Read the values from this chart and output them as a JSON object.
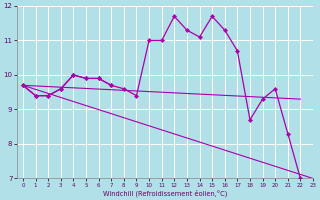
{
  "xlabel": "Windchill (Refroidissement éolien,°C)",
  "background_color": "#b2e0e8",
  "grid_color": "#ffffff",
  "line_color": "#aa00aa",
  "x_values": [
    0,
    1,
    2,
    3,
    4,
    5,
    6,
    7,
    8,
    9,
    10,
    11,
    12,
    13,
    14,
    15,
    16,
    17,
    18,
    19,
    20,
    21,
    22,
    23
  ],
  "series_main": [
    9.7,
    9.4,
    9.4,
    9.6,
    10.0,
    9.9,
    9.9,
    9.7,
    9.6,
    9.4,
    11.0,
    11.0,
    11.7,
    11.3,
    11.1,
    11.7,
    11.3,
    10.7,
    8.7,
    9.3,
    9.6,
    8.3,
    7.0,
    null
  ],
  "series_short": [
    9.7,
    9.4,
    9.4,
    9.6,
    10.0,
    9.9,
    9.9,
    9.7,
    null,
    9.4,
    null,
    null,
    null,
    null,
    null,
    null,
    null,
    null,
    null,
    null,
    null,
    null,
    null,
    null
  ],
  "line_flat": [
    [
      0,
      9.7
    ],
    [
      22,
      9.3
    ]
  ],
  "line_diag": [
    [
      0,
      9.7
    ],
    [
      23,
      7.0
    ]
  ],
  "ylim": [
    7,
    12
  ],
  "xlim": [
    -0.5,
    23
  ],
  "yticks": [
    7,
    8,
    9,
    10,
    11,
    12
  ],
  "xticks": [
    0,
    1,
    2,
    3,
    4,
    5,
    6,
    7,
    8,
    9,
    10,
    11,
    12,
    13,
    14,
    15,
    16,
    17,
    18,
    19,
    20,
    21,
    22,
    23
  ]
}
